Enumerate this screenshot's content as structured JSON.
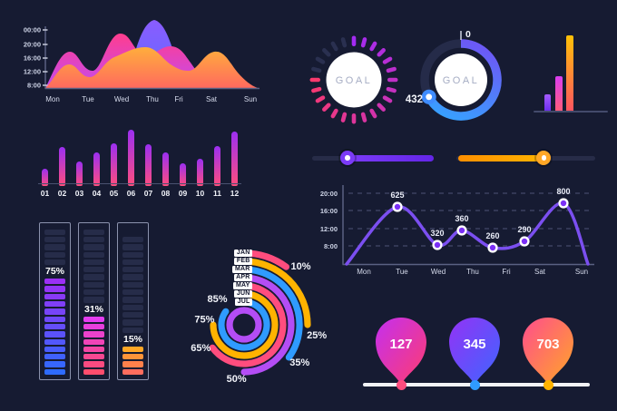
{
  "background": "#161b32",
  "chart_data": [
    {
      "id": "area_chart",
      "type": "area",
      "y_ticks": [
        "00:00",
        "20:00",
        "16:00",
        "12:00",
        "8:00"
      ],
      "x_ticks": [
        "Mon",
        "Tue",
        "Wed",
        "Thu",
        "Fri",
        "Sat",
        "Sun"
      ],
      "series": [
        {
          "name": "purple",
          "values": [
            0,
            0,
            10,
            95,
            15,
            0,
            0
          ],
          "colors": [
            "#8a5cff",
            "#5f6cff"
          ]
        },
        {
          "name": "pink",
          "values": [
            5,
            55,
            80,
            60,
            62,
            8,
            0
          ],
          "colors": [
            "#ff3d8e",
            "#c44bf0"
          ]
        },
        {
          "name": "orange",
          "values": [
            2,
            38,
            62,
            58,
            30,
            58,
            4
          ],
          "colors": [
            "#ffae3c",
            "#ff6a5e"
          ]
        }
      ],
      "grid": false,
      "legend": false
    },
    {
      "id": "bar_chart",
      "type": "bar",
      "categories": [
        "01",
        "02",
        "03",
        "04",
        "05",
        "06",
        "07",
        "08",
        "09",
        "10",
        "11",
        "12"
      ],
      "values": [
        30,
        70,
        44,
        60,
        76,
        100,
        75,
        59,
        40,
        49,
        71,
        97
      ],
      "ylim": [
        0,
        100
      ],
      "bar_colors": [
        "#ff4d7e",
        "#9b2ff2"
      ]
    },
    {
      "id": "progress_bars",
      "type": "bar",
      "items": [
        {
          "label": "75%",
          "value": 75,
          "filled": 13,
          "dim": 5,
          "colors": [
            "#9b30f5",
            "#2e6bff"
          ]
        },
        {
          "label": "31%",
          "value": 31,
          "filled": 8,
          "dim": 10,
          "colors": [
            "#e43df0",
            "#ff4d6d"
          ]
        },
        {
          "label": "15%",
          "value": 15,
          "filled": 4,
          "dim": 13,
          "colors": [
            "#ffa726",
            "#ff6d5e"
          ]
        }
      ]
    },
    {
      "id": "radial_chart",
      "type": "pie",
      "categories": [
        "JAN",
        "FEB",
        "MAR",
        "APR",
        "MAY",
        "JUN",
        "JUL"
      ],
      "values": [
        10,
        25,
        35,
        50,
        65,
        75,
        85
      ],
      "labels": [
        "10%",
        "25%",
        "35%",
        "50%",
        "65%",
        "75%",
        "85%"
      ],
      "ring_colors": [
        "#ff4d7e",
        "#ffb300",
        "#2f9bff",
        "#b44df5",
        "#ff4d7e",
        "#ffb300",
        "#2f9bff"
      ],
      "inner_ring_color": "#b44df5"
    },
    {
      "id": "gauge_dashed",
      "type": "pie",
      "label": "GOAL",
      "tick_count": 24,
      "lit_ticks": 19,
      "colors": [
        "#a32bf2",
        "#fa3a6e"
      ],
      "off_color": "#2a3050"
    },
    {
      "id": "gauge_ring",
      "type": "pie",
      "label": "GOAL",
      "value": "432",
      "start_label": "0",
      "sweep_deg": 242,
      "colors": [
        "#6b5af5",
        "#38a0ff"
      ],
      "track_color": "#252b49"
    },
    {
      "id": "mini_bar_chart",
      "type": "bar",
      "values": [
        22,
        46,
        100
      ],
      "bar_colors": [
        [
          "#6d2ff0",
          "#a55cff"
        ],
        [
          "#ff5c7a",
          "#d93df0"
        ],
        [
          "#ff5560",
          "#ffc107"
        ]
      ]
    },
    {
      "id": "line_chart",
      "type": "line",
      "y_ticks": [
        "20:00",
        "16:00",
        "12:00",
        "8:00"
      ],
      "x_ticks": [
        "Mon",
        "Tue",
        "Wed",
        "Thu",
        "Fri",
        "Sat",
        "Sun"
      ],
      "values": [
        625,
        320,
        360,
        260,
        290,
        800
      ],
      "point_labels": [
        "625",
        "320",
        "360",
        "260",
        "290",
        "800"
      ],
      "line_color": "#7b4ff0",
      "dot_inner_color": "#7b2ff5",
      "grid": true,
      "grid_style": "dashed"
    },
    {
      "id": "balloon_timeline",
      "type": "scatter",
      "values": [
        127,
        345,
        703
      ],
      "labels": [
        "127",
        "345",
        "703"
      ],
      "balloon_colors": [
        [
          "#c42ff0",
          "#ff3d6e"
        ],
        [
          "#9333f5",
          "#3e66ff"
        ],
        [
          "#ff4d8d",
          "#ffa726"
        ]
      ],
      "dot_colors": [
        "#ff4d7e",
        "#2f9bff",
        "#ffb300"
      ]
    }
  ],
  "ui": {
    "sliders": [
      {
        "name": "purple",
        "fill_color_a": "#7b3bf7",
        "fill_color_b": "#6426e8",
        "knob_color": "#7b3bf7",
        "value_pct": 29,
        "fill_side": "right"
      },
      {
        "name": "orange",
        "fill_color_a": "#ff8f00",
        "fill_color_b": "#ffb300",
        "knob_color": "#ffa726",
        "value_pct": 63,
        "fill_side": "left"
      }
    ]
  }
}
